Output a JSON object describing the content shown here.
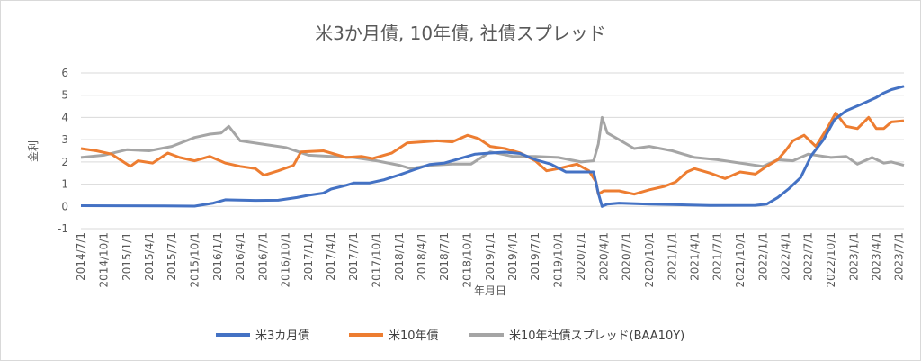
{
  "chart_data": {
    "type": "line",
    "title": "米3か月債, 10年債, 社債スプレッド",
    "xlabel": "年月日",
    "ylabel": "金利",
    "ylim": [
      -1,
      6
    ],
    "yticks": [
      "6",
      "5",
      "4",
      "3",
      "2",
      "1",
      "0",
      "-1"
    ],
    "grid": true,
    "legend_position": "bottom",
    "x_start": "2014-07-01",
    "x_end": "2023-07-21",
    "x_ticks": [
      "2014/7/1",
      "2014/10/1",
      "2015/1/1",
      "2015/4/1",
      "2015/7/1",
      "2015/10/1",
      "2016/1/1",
      "2016/4/1",
      "2016/7/1",
      "2016/10/1",
      "2017/1/1",
      "2017/4/1",
      "2017/7/1",
      "2017/10/1",
      "2018/1/1",
      "2018/4/1",
      "2018/7/1",
      "2018/10/1",
      "2019/1/1",
      "2019/4/1",
      "2019/7/1",
      "2019/10/1",
      "2020/1/1",
      "2020/4/1",
      "2020/7/1",
      "2020/10/1",
      "2021/1/1",
      "2021/4/1",
      "2021/7/1",
      "2021/10/1",
      "2022/1/1",
      "2022/4/1",
      "2022/7/1",
      "2022/10/1",
      "2023/1/1",
      "2023/4/1",
      "2023/7/1"
    ],
    "series": [
      {
        "name": "米3カ月債",
        "color": "#4472c4",
        "points": [
          [
            "2014-07-01",
            0.03
          ],
          [
            "2015-06-01",
            0.02
          ],
          [
            "2015-10-01",
            0.01
          ],
          [
            "2015-12-15",
            0.15
          ],
          [
            "2016-02-01",
            0.3
          ],
          [
            "2016-06-01",
            0.27
          ],
          [
            "2016-09-01",
            0.28
          ],
          [
            "2016-11-15",
            0.4
          ],
          [
            "2017-01-01",
            0.5
          ],
          [
            "2017-03-01",
            0.6
          ],
          [
            "2017-04-01",
            0.78
          ],
          [
            "2017-06-01",
            0.95
          ],
          [
            "2017-07-01",
            1.05
          ],
          [
            "2017-09-01",
            1.05
          ],
          [
            "2017-11-01",
            1.2
          ],
          [
            "2018-01-01",
            1.42
          ],
          [
            "2018-03-01",
            1.65
          ],
          [
            "2018-05-01",
            1.88
          ],
          [
            "2018-07-01",
            1.95
          ],
          [
            "2018-09-01",
            2.15
          ],
          [
            "2018-11-01",
            2.35
          ],
          [
            "2019-01-01",
            2.4
          ],
          [
            "2019-03-01",
            2.44
          ],
          [
            "2019-05-01",
            2.38
          ],
          [
            "2019-07-01",
            2.1
          ],
          [
            "2019-09-01",
            1.9
          ],
          [
            "2019-11-01",
            1.55
          ],
          [
            "2020-01-01",
            1.55
          ],
          [
            "2020-02-20",
            1.55
          ],
          [
            "2020-03-10",
            0.6
          ],
          [
            "2020-03-25",
            0.0
          ],
          [
            "2020-04-15",
            0.1
          ],
          [
            "2020-06-01",
            0.15
          ],
          [
            "2020-10-01",
            0.1
          ],
          [
            "2021-01-01",
            0.08
          ],
          [
            "2021-06-01",
            0.04
          ],
          [
            "2021-12-01",
            0.05
          ],
          [
            "2022-01-15",
            0.1
          ],
          [
            "2022-03-01",
            0.4
          ],
          [
            "2022-04-15",
            0.8
          ],
          [
            "2022-06-01",
            1.3
          ],
          [
            "2022-07-15",
            2.3
          ],
          [
            "2022-09-01",
            3.0
          ],
          [
            "2022-10-15",
            3.9
          ],
          [
            "2022-12-01",
            4.3
          ],
          [
            "2023-02-01",
            4.6
          ],
          [
            "2023-04-01",
            4.9
          ],
          [
            "2023-05-01",
            5.1
          ],
          [
            "2023-06-01",
            5.25
          ],
          [
            "2023-07-21",
            5.4
          ]
        ]
      },
      {
        "name": "米10年債",
        "color": "#ed7d31",
        "points": [
          [
            "2014-07-01",
            2.6
          ],
          [
            "2014-09-01",
            2.5
          ],
          [
            "2014-11-01",
            2.35
          ],
          [
            "2015-01-15",
            1.8
          ],
          [
            "2015-02-15",
            2.05
          ],
          [
            "2015-04-15",
            1.95
          ],
          [
            "2015-06-15",
            2.4
          ],
          [
            "2015-08-01",
            2.2
          ],
          [
            "2015-10-01",
            2.05
          ],
          [
            "2015-12-01",
            2.25
          ],
          [
            "2016-02-01",
            1.95
          ],
          [
            "2016-04-01",
            1.8
          ],
          [
            "2016-06-01",
            1.7
          ],
          [
            "2016-07-05",
            1.4
          ],
          [
            "2016-09-01",
            1.6
          ],
          [
            "2016-11-01",
            1.85
          ],
          [
            "2016-12-01",
            2.45
          ],
          [
            "2017-03-01",
            2.5
          ],
          [
            "2017-06-01",
            2.2
          ],
          [
            "2017-08-01",
            2.25
          ],
          [
            "2017-09-15",
            2.15
          ],
          [
            "2017-12-01",
            2.4
          ],
          [
            "2018-02-01",
            2.85
          ],
          [
            "2018-04-01",
            2.9
          ],
          [
            "2018-06-01",
            2.95
          ],
          [
            "2018-08-01",
            2.9
          ],
          [
            "2018-10-01",
            3.2
          ],
          [
            "2018-11-15",
            3.05
          ],
          [
            "2019-01-01",
            2.7
          ],
          [
            "2019-03-01",
            2.6
          ],
          [
            "2019-05-01",
            2.4
          ],
          [
            "2019-07-01",
            2.05
          ],
          [
            "2019-08-15",
            1.6
          ],
          [
            "2019-10-01",
            1.7
          ],
          [
            "2019-12-15",
            1.9
          ],
          [
            "2020-02-01",
            1.6
          ],
          [
            "2020-03-01",
            1.1
          ],
          [
            "2020-03-10",
            0.55
          ],
          [
            "2020-04-01",
            0.7
          ],
          [
            "2020-06-01",
            0.7
          ],
          [
            "2020-08-01",
            0.55
          ],
          [
            "2020-10-01",
            0.75
          ],
          [
            "2020-12-01",
            0.9
          ],
          [
            "2021-01-15",
            1.1
          ],
          [
            "2021-03-01",
            1.55
          ],
          [
            "2021-04-01",
            1.7
          ],
          [
            "2021-06-01",
            1.5
          ],
          [
            "2021-08-01",
            1.25
          ],
          [
            "2021-10-01",
            1.55
          ],
          [
            "2021-12-01",
            1.45
          ],
          [
            "2022-01-15",
            1.8
          ],
          [
            "2022-03-01",
            2.1
          ],
          [
            "2022-04-01",
            2.5
          ],
          [
            "2022-05-01",
            2.95
          ],
          [
            "2022-06-15",
            3.2
          ],
          [
            "2022-08-01",
            2.7
          ],
          [
            "2022-09-15",
            3.5
          ],
          [
            "2022-10-20",
            4.2
          ],
          [
            "2022-12-01",
            3.6
          ],
          [
            "2023-01-15",
            3.5
          ],
          [
            "2023-03-01",
            4.0
          ],
          [
            "2023-04-01",
            3.5
          ],
          [
            "2023-05-01",
            3.5
          ],
          [
            "2023-06-01",
            3.8
          ],
          [
            "2023-07-21",
            3.85
          ]
        ]
      },
      {
        "name": "米10年社債スプレッド(BAA10Y)",
        "color": "#a5a5a5",
        "points": [
          [
            "2014-07-01",
            2.2
          ],
          [
            "2014-10-01",
            2.3
          ],
          [
            "2015-01-01",
            2.55
          ],
          [
            "2015-04-01",
            2.5
          ],
          [
            "2015-07-01",
            2.7
          ],
          [
            "2015-10-01",
            3.1
          ],
          [
            "2015-12-01",
            3.25
          ],
          [
            "2016-01-15",
            3.3
          ],
          [
            "2016-02-15",
            3.6
          ],
          [
            "2016-04-01",
            2.95
          ],
          [
            "2016-07-01",
            2.8
          ],
          [
            "2016-10-01",
            2.65
          ],
          [
            "2017-01-01",
            2.3
          ],
          [
            "2017-04-01",
            2.25
          ],
          [
            "2017-07-01",
            2.2
          ],
          [
            "2017-10-01",
            2.05
          ],
          [
            "2018-01-01",
            1.85
          ],
          [
            "2018-02-15",
            1.7
          ],
          [
            "2018-05-01",
            1.85
          ],
          [
            "2018-08-01",
            1.9
          ],
          [
            "2018-10-15",
            1.9
          ],
          [
            "2019-01-01",
            2.45
          ],
          [
            "2019-04-01",
            2.25
          ],
          [
            "2019-07-01",
            2.25
          ],
          [
            "2019-10-01",
            2.2
          ],
          [
            "2020-01-01",
            2.0
          ],
          [
            "2020-02-20",
            2.05
          ],
          [
            "2020-03-10",
            2.8
          ],
          [
            "2020-03-25",
            4.0
          ],
          [
            "2020-04-15",
            3.3
          ],
          [
            "2020-06-01",
            3.0
          ],
          [
            "2020-08-01",
            2.6
          ],
          [
            "2020-10-01",
            2.7
          ],
          [
            "2021-01-01",
            2.5
          ],
          [
            "2021-04-01",
            2.2
          ],
          [
            "2021-07-01",
            2.1
          ],
          [
            "2021-10-01",
            1.95
          ],
          [
            "2022-01-01",
            1.8
          ],
          [
            "2022-03-01",
            2.1
          ],
          [
            "2022-05-01",
            2.05
          ],
          [
            "2022-07-01",
            2.35
          ],
          [
            "2022-10-01",
            2.2
          ],
          [
            "2022-12-01",
            2.25
          ],
          [
            "2023-01-15",
            1.9
          ],
          [
            "2023-03-15",
            2.2
          ],
          [
            "2023-05-01",
            1.95
          ],
          [
            "2023-06-01",
            2.0
          ],
          [
            "2023-07-21",
            1.85
          ]
        ]
      }
    ]
  }
}
